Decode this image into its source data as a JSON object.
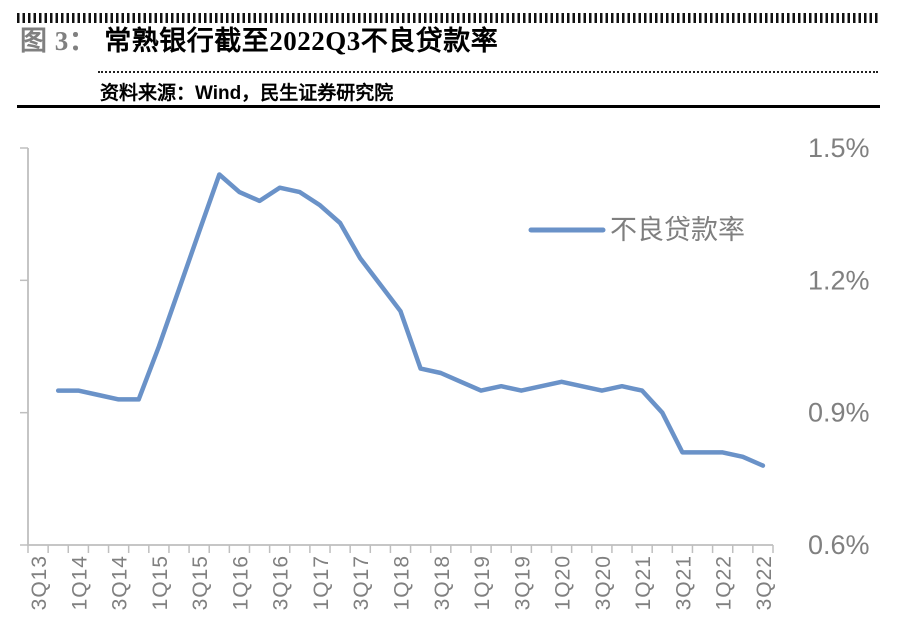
{
  "header": {
    "figure_label": "图 3：",
    "title": "常熟银行截至2022Q3不良贷款率",
    "source": "资料来源：Wind，民生证券研究院"
  },
  "colors": {
    "line": "#6A92C8",
    "axis": "#BFBFBF",
    "axis_text": "#808080",
    "legend_text": "#7F7F7F"
  },
  "chart_data": {
    "type": "line",
    "title": "常熟银行截至2022Q3不良贷款率",
    "legend": [
      "不良贷款率"
    ],
    "legend_position": "center-right",
    "grid": false,
    "y_axis": {
      "side": "right",
      "unit": "%",
      "min": 0.6,
      "max": 1.5,
      "tick_values": [
        1.5,
        1.2,
        0.9,
        0.6
      ],
      "tick_labels": [
        "1.5%",
        "1.2%",
        "0.9%",
        "0.6%"
      ]
    },
    "x_axis": {
      "categories": [
        "3Q13",
        "4Q13",
        "1Q14",
        "2Q14",
        "3Q14",
        "4Q14",
        "1Q15",
        "2Q15",
        "3Q15",
        "4Q15",
        "1Q16",
        "2Q16",
        "3Q16",
        "4Q16",
        "1Q17",
        "2Q17",
        "3Q17",
        "4Q17",
        "1Q18",
        "2Q18",
        "3Q18",
        "4Q18",
        "1Q19",
        "2Q19",
        "3Q19",
        "4Q19",
        "1Q20",
        "2Q20",
        "3Q20",
        "4Q20",
        "1Q21",
        "2Q21",
        "3Q21",
        "4Q21",
        "1Q22",
        "2Q22",
        "3Q22"
      ],
      "tick_labels": [
        "3Q13",
        "1Q14",
        "3Q14",
        "1Q15",
        "3Q15",
        "1Q16",
        "3Q16",
        "1Q17",
        "3Q17",
        "1Q18",
        "3Q18",
        "1Q19",
        "3Q19",
        "1Q20",
        "3Q20",
        "1Q21",
        "3Q21",
        "1Q22",
        "3Q22"
      ]
    },
    "series": [
      {
        "name": "不良贷款率",
        "unit": "%",
        "x": [
          "4Q13",
          "1Q14",
          "2Q14",
          "3Q14",
          "4Q14",
          "1Q15",
          "2Q15",
          "3Q15",
          "4Q15",
          "1Q16",
          "2Q16",
          "3Q16",
          "4Q16",
          "1Q17",
          "2Q17",
          "3Q17",
          "4Q17",
          "1Q18",
          "2Q18",
          "3Q18",
          "4Q18",
          "1Q19",
          "2Q19",
          "3Q19",
          "4Q19",
          "1Q20",
          "2Q20",
          "3Q20",
          "4Q20",
          "1Q21",
          "2Q21",
          "3Q21",
          "4Q21",
          "1Q22",
          "2Q22",
          "3Q22"
        ],
        "values": [
          0.95,
          0.95,
          0.94,
          0.93,
          0.93,
          1.05,
          1.18,
          1.31,
          1.44,
          1.4,
          1.38,
          1.41,
          1.4,
          1.37,
          1.33,
          1.25,
          1.19,
          1.13,
          1.0,
          0.99,
          0.97,
          0.95,
          0.96,
          0.95,
          0.96,
          0.97,
          0.96,
          0.95,
          0.96,
          0.95,
          0.9,
          0.81,
          0.81,
          0.81,
          0.8,
          0.78
        ]
      }
    ]
  }
}
